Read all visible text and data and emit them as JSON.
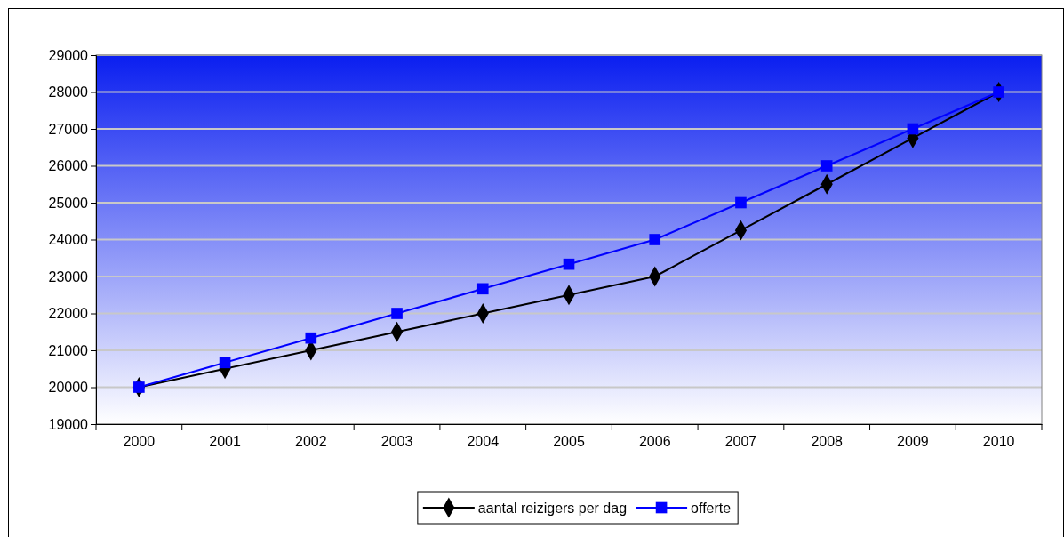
{
  "chart_data": {
    "type": "line",
    "categories": [
      "2000",
      "2001",
      "2002",
      "2003",
      "2004",
      "2005",
      "2006",
      "2007",
      "2008",
      "2009",
      "2010"
    ],
    "series": [
      {
        "name": "aantal reizigers per dag",
        "color": "#000000",
        "marker": "diamond",
        "values": [
          20000,
          20500,
          21000,
          21500,
          22000,
          22500,
          23000,
          24250,
          25500,
          26750,
          28000
        ]
      },
      {
        "name": "offerte",
        "color": "#0000ff",
        "marker": "square",
        "values": [
          20000,
          20667,
          21333,
          22000,
          22667,
          23333,
          24000,
          25000,
          26000,
          27000,
          28000
        ]
      }
    ],
    "ylim": [
      19000,
      29000
    ],
    "yticks": [
      19000,
      20000,
      21000,
      22000,
      23000,
      24000,
      25000,
      26000,
      27000,
      28000,
      29000
    ],
    "grid": "y",
    "legend": "bottom",
    "line_style": "solid"
  }
}
